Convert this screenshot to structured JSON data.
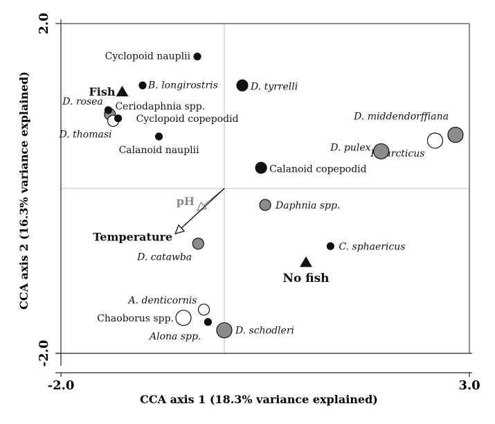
{
  "chart_data": {
    "type": "scatter",
    "title": "",
    "xlabel": "CCA axis 1 (18.3% variance explained)",
    "ylabel": "CCA axis 2 (16.3% variance explained)",
    "xlim": [
      -2.0,
      3.0
    ],
    "ylim": [
      -2.0,
      2.0
    ],
    "x_tick_labels": [
      "-2.0",
      "3.0"
    ],
    "y_tick_labels": [
      "2.0",
      "-2.0"
    ],
    "grid": false,
    "zero_lines": true,
    "legend": "none",
    "colors": {
      "black": "#111111",
      "grey": "#8c8c8c",
      "white": "#ffffff",
      "axis": "#222222",
      "zero_line": "#bdbdbd",
      "ph_arrow": "#8a8a8a"
    },
    "points": [
      {
        "label": "Cyclopoid nauplii",
        "x": -0.33,
        "y": 1.6,
        "fill": "black",
        "size": "small",
        "italic": false
      },
      {
        "label": "B. longirostris",
        "x": -1.0,
        "y": 1.25,
        "fill": "black",
        "size": "small",
        "italic": true
      },
      {
        "label": "D. tyrrelli",
        "x": 0.22,
        "y": 1.25,
        "fill": "black",
        "size": "medium",
        "italic": true
      },
      {
        "label": "D. rosea",
        "x": -1.4,
        "y": 0.9,
        "fill": "grey",
        "size": "medium",
        "italic": true
      },
      {
        "label": "Ceriodaphnia spp.",
        "x": -1.42,
        "y": 0.95,
        "fill": "black",
        "size": "small",
        "italic": false
      },
      {
        "label": "D. thomasi",
        "x": -1.36,
        "y": 0.82,
        "fill": "white",
        "size": "medium",
        "italic": true
      },
      {
        "label": "Cyclopoid copepodid",
        "x": -1.3,
        "y": 0.85,
        "fill": "black",
        "size": "small",
        "italic": false
      },
      {
        "label": "Calanoid nauplii",
        "x": -0.8,
        "y": 0.63,
        "fill": "black",
        "size": "small",
        "italic": false
      },
      {
        "label": "D. middendorffiana",
        "x": 2.83,
        "y": 0.65,
        "fill": "grey",
        "size": "large",
        "italic": true
      },
      {
        "label": "H. arcticus",
        "x": 2.58,
        "y": 0.58,
        "fill": "white",
        "size": "large",
        "italic": true
      },
      {
        "label": "D. pulex",
        "x": 1.92,
        "y": 0.45,
        "fill": "grey",
        "size": "large",
        "italic": true
      },
      {
        "label": "Calanoid copepodid",
        "x": 0.45,
        "y": 0.25,
        "fill": "black",
        "size": "medium",
        "italic": false
      },
      {
        "label": "Daphnia spp.",
        "x": 0.5,
        "y": -0.2,
        "fill": "grey",
        "size": "medium",
        "italic": true
      },
      {
        "label": "D. catawba",
        "x": -0.32,
        "y": -0.67,
        "fill": "grey",
        "size": "medium",
        "italic": true
      },
      {
        "label": "C. sphaericus",
        "x": 1.3,
        "y": -0.7,
        "fill": "black",
        "size": "small",
        "italic": true
      },
      {
        "label": "A. denticornis",
        "x": -0.25,
        "y": -1.47,
        "fill": "white",
        "size": "medium",
        "italic": true
      },
      {
        "label": "Chaoborus spp.",
        "x": -0.5,
        "y": -1.57,
        "fill": "white",
        "size": "large",
        "italic": false
      },
      {
        "label": "Alona spp.",
        "x": -0.2,
        "y": -1.62,
        "fill": "black",
        "size": "small",
        "italic": true
      },
      {
        "label": "D. schodleri",
        "x": 0.0,
        "y": -1.72,
        "fill": "grey",
        "size": "large",
        "italic": true
      }
    ],
    "centroids": [
      {
        "label": "Fish",
        "x": -1.25,
        "y": 1.17
      },
      {
        "label": "No fish",
        "x": 1.0,
        "y": -0.9
      }
    ],
    "vectors": [
      {
        "label": "pH",
        "x": -0.33,
        "y": -0.27
      },
      {
        "label": "Temperature",
        "x": -0.6,
        "y": -0.55
      }
    ]
  }
}
